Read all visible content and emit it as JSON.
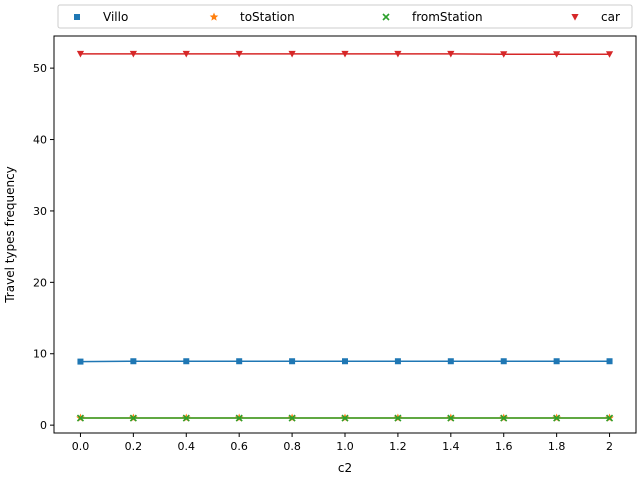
{
  "chart_data": {
    "type": "line",
    "xlabel": "c2",
    "ylabel": "Travel types frequency",
    "x": [
      0.0,
      0.2,
      0.4,
      0.6,
      0.8,
      1.0,
      1.2,
      1.4,
      1.6,
      1.8,
      2.0
    ],
    "x_tick_labels": [
      "0.0",
      "0.2",
      "0.4",
      "0.6",
      "0.8",
      "1.0",
      "1.2",
      "1.4",
      "1.6",
      "1.8",
      "2"
    ],
    "y_ticks": [
      0,
      10,
      20,
      30,
      40,
      50
    ],
    "xlim": [
      -0.1,
      2.1
    ],
    "ylim": [
      -1.1,
      54.5
    ],
    "grid": false,
    "legend_position": "top",
    "series": [
      {
        "name": "Villo",
        "color": "#1f77b4",
        "marker": "square",
        "values": [
          8.9,
          8.95,
          8.95,
          8.95,
          8.95,
          8.95,
          8.95,
          8.95,
          8.95,
          8.95,
          8.95
        ]
      },
      {
        "name": "toStation",
        "color": "#ff7f0e",
        "marker": "star",
        "values": [
          1.0,
          1.0,
          1.0,
          1.0,
          1.0,
          1.0,
          1.0,
          1.0,
          1.0,
          1.0,
          1.0
        ]
      },
      {
        "name": "fromStation",
        "color": "#2ca02c",
        "marker": "x",
        "values": [
          1.0,
          1.0,
          1.0,
          1.0,
          1.0,
          1.0,
          1.0,
          1.0,
          1.0,
          1.0,
          1.0
        ]
      },
      {
        "name": "car",
        "color": "#d62728",
        "marker": "triangle-down",
        "values": [
          52.0,
          52.0,
          52.0,
          52.0,
          52.0,
          52.0,
          52.0,
          52.0,
          51.95,
          51.95,
          51.95
        ]
      }
    ]
  }
}
